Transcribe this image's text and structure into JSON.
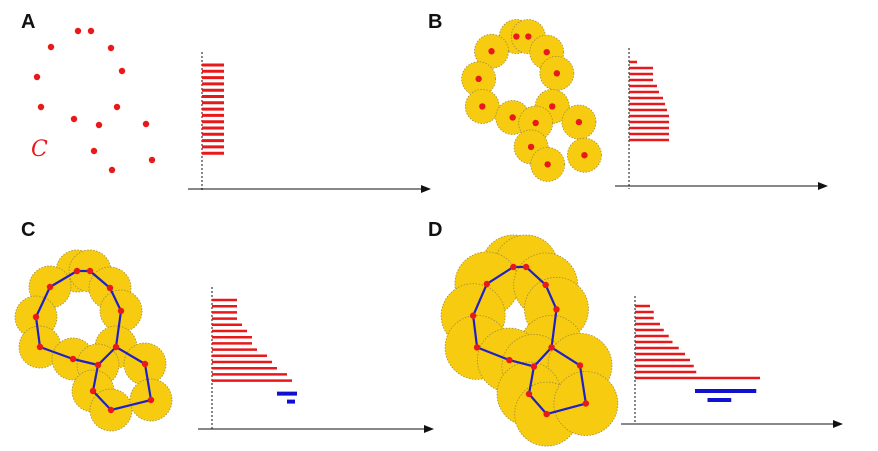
{
  "figure": {
    "cloud_label": "C",
    "colors": {
      "point": "#e8191b",
      "ball_fill": "#f7cc10",
      "ball_stroke": "#a08a3a",
      "h0_bar": "#e8191b",
      "h1_bar": "#1010d0",
      "edge": "#2020c8",
      "axis": "#111111"
    },
    "panels": [
      {
        "label": "A",
        "point_scale": 1.0,
        "show_balls": false,
        "show_edges": false,
        "h0_bar_lengths": [
          1.0,
          1.0,
          1.0,
          1.0,
          1.0,
          1.0,
          1.0,
          1.0,
          1.0,
          1.0,
          1.0,
          1.0,
          1.0,
          1.0,
          1.0
        ],
        "h1_bars": []
      },
      {
        "label": "B",
        "point_scale": 0.92,
        "show_balls": true,
        "show_edges": false,
        "h0_bar_lengths": [
          0.2,
          0.6,
          0.6,
          0.6,
          0.7,
          0.75,
          0.85,
          0.9,
          0.95,
          1.0,
          1.0,
          1.0,
          1.0,
          1.0
        ],
        "h1_bars": []
      },
      {
        "label": "C",
        "point_scale": 1.0,
        "show_balls": true,
        "show_edges": true,
        "h0_bar_lengths": [
          0.25,
          0.25,
          0.25,
          0.25,
          0.3,
          0.35,
          0.4,
          0.4,
          0.45,
          0.55,
          0.6,
          0.65,
          0.75,
          0.8
        ],
        "h1_bars": [
          [
            0.65,
            0.85
          ],
          [
            0.75,
            0.83
          ]
        ]
      },
      {
        "label": "D",
        "point_scale": 0.98,
        "show_balls": true,
        "show_edges": true,
        "h0_bar_lengths": [
          0.12,
          0.15,
          0.15,
          0.2,
          0.23,
          0.27,
          0.3,
          0.35,
          0.4,
          0.44,
          0.47,
          0.49,
          1.0
        ],
        "h1_bars": [
          [
            0.48,
            0.97
          ],
          [
            0.58,
            0.77
          ]
        ]
      }
    ]
  }
}
